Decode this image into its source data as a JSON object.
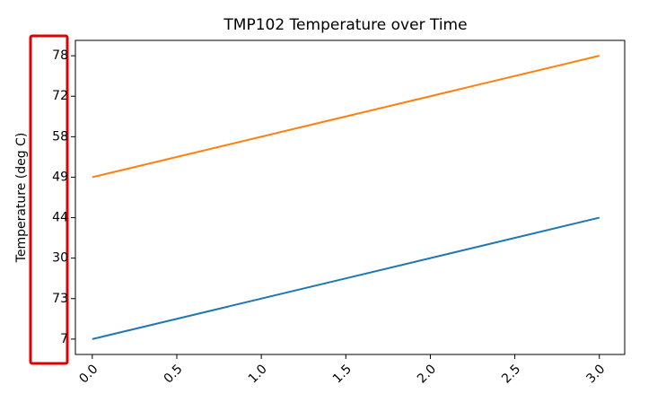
{
  "chart_data": {
    "type": "line",
    "title": "TMP102 Temperature over Time",
    "y_label": "Temperature (deg C)",
    "x": [
      0,
      3
    ],
    "series": [
      {
        "color": "#1f77b4",
        "values": [
          0,
          3
        ]
      },
      {
        "color": "#ff7f0e",
        "values": [
          4,
          7
        ]
      }
    ],
    "xlim": [
      -0.1,
      3.15
    ],
    "xticks": [
      {
        "value": 0,
        "label": "0.0"
      },
      {
        "value": 0.5,
        "label": "0.5"
      },
      {
        "value": 1,
        "label": "1.0"
      },
      {
        "value": 1.5,
        "label": "1.5"
      },
      {
        "value": 2,
        "label": "2.0"
      },
      {
        "value": 2.5,
        "label": "2.5"
      },
      {
        "value": 3,
        "label": "3.0"
      }
    ],
    "ylim": [
      -0.38,
      7.38
    ],
    "yticks": [
      {
        "value": 0,
        "label": "7"
      },
      {
        "value": 1,
        "label": "73"
      },
      {
        "value": 2,
        "label": "30"
      },
      {
        "value": 3,
        "label": "44"
      },
      {
        "value": 4,
        "label": "49"
      },
      {
        "value": 5,
        "label": "58"
      },
      {
        "value": 6,
        "label": "72"
      },
      {
        "value": 7,
        "label": "78"
      }
    ],
    "grid": false
  }
}
